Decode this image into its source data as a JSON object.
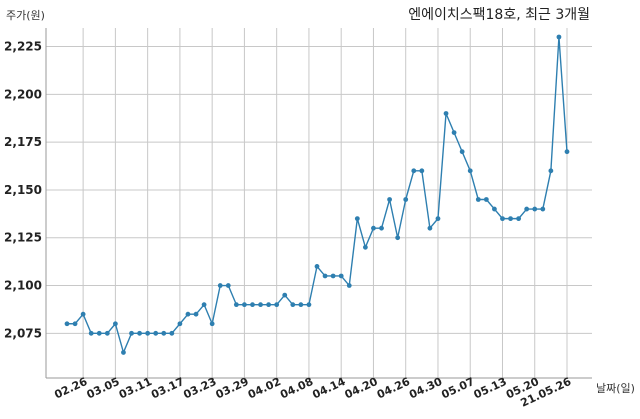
{
  "chart_data": {
    "type": "line",
    "title": "엔에이치스팩18호, 최근 3개월",
    "ylabel": "주가(원)",
    "xlabel": "날짜(일)",
    "ylim": [
      2060,
      2235
    ],
    "yticks": [
      2075,
      2100,
      2125,
      2150,
      2175,
      2200,
      2225
    ],
    "ytick_labels": [
      "2,075",
      "2,100",
      "2,125",
      "2,150",
      "2,175",
      "2,200",
      "2,225"
    ],
    "grid": true,
    "line_color": "#2e7fb0",
    "x_tick_labels": [
      "02.26",
      "03.05",
      "03.11",
      "03.17",
      "03.23",
      "03.29",
      "04.02",
      "04.08",
      "04.14",
      "04.20",
      "04.26",
      "04.30",
      "05.07",
      "05.13",
      "05.20",
      "21.05.26"
    ],
    "x_tick_positions": [
      2,
      6,
      10,
      14,
      18,
      22,
      26,
      30,
      34,
      38,
      42,
      46,
      50,
      54,
      58,
      62
    ],
    "series": [
      {
        "values": [
          2080,
          2080,
          2085,
          2075,
          2075,
          2075,
          2080,
          2065,
          2075,
          2075,
          2075,
          2075,
          2075,
          2075,
          2080,
          2085,
          2085,
          2090,
          2080,
          2100,
          2100,
          2090,
          2090,
          2090,
          2090,
          2090,
          2090,
          2095,
          2090,
          2090,
          2090,
          2110,
          2105,
          2105,
          2105,
          2100,
          2135,
          2120,
          2130,
          2130,
          2145,
          2125,
          2145,
          2160,
          2160,
          2130,
          2135,
          2190,
          2180,
          2170,
          2160,
          2145,
          2145,
          2140,
          2135,
          2135,
          2135,
          2140,
          2140,
          2140,
          2160,
          2230,
          2170
        ]
      }
    ]
  }
}
